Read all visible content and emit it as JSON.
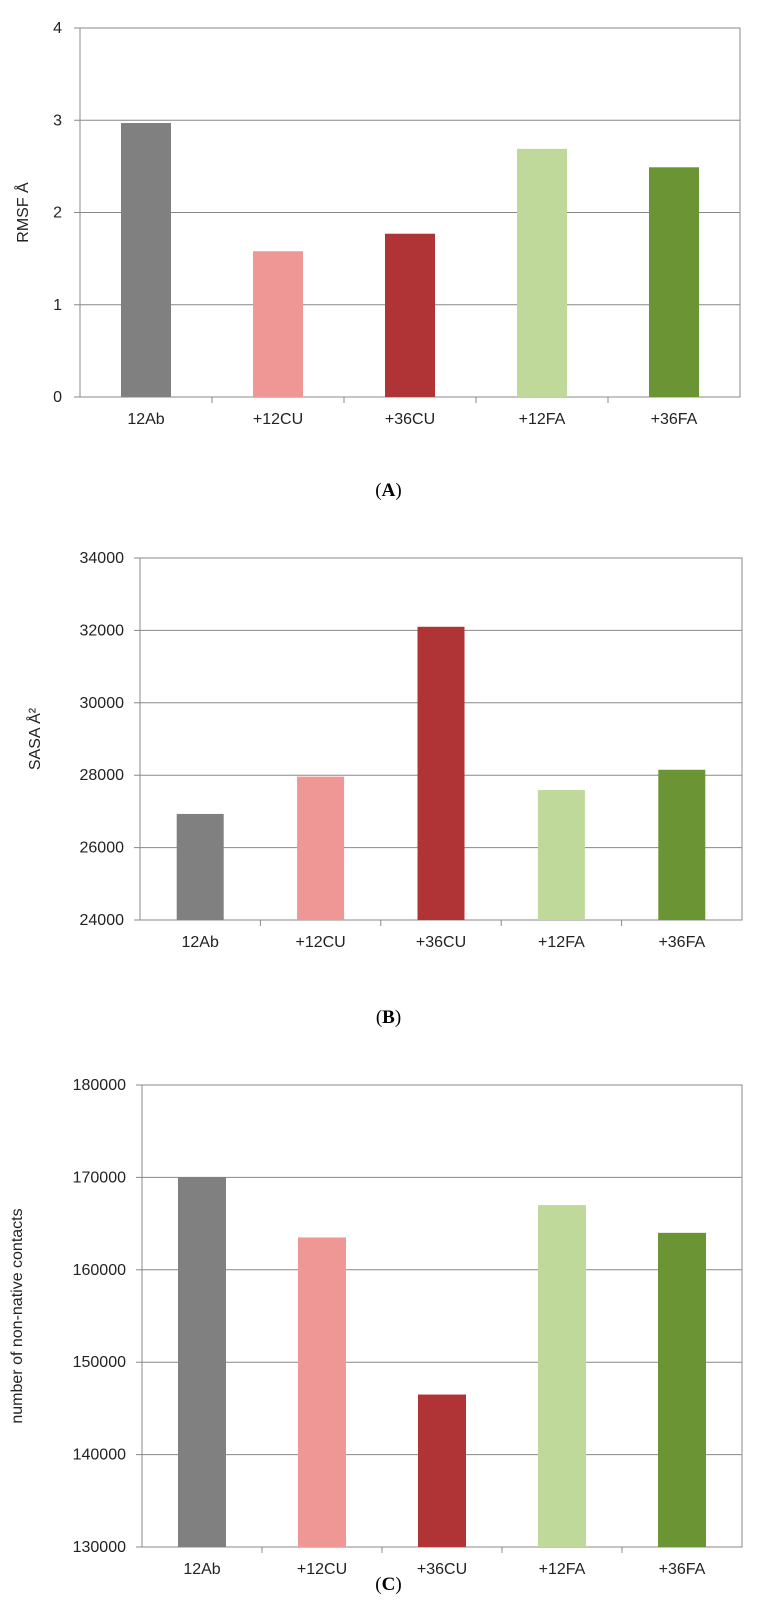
{
  "chart_data": [
    {
      "type": "bar",
      "panel_label": "A",
      "categories": [
        "12Ab",
        "+12CU",
        "+36CU",
        "+12FA",
        "+36FA"
      ],
      "values": [
        2.97,
        1.58,
        1.77,
        2.69,
        2.49
      ],
      "colors": [
        "#808080",
        "#ef9794",
        "#b03335",
        "#bfd99a",
        "#6b9534"
      ],
      "title": "",
      "xlabel": "",
      "ylabel": "RMSF Å",
      "ylim": [
        0,
        4
      ],
      "yticks": [
        0,
        1,
        2,
        3,
        4
      ],
      "ytick_labels": [
        "0",
        "1",
        "2",
        "3",
        "4"
      ],
      "grid": true,
      "legend": "none"
    },
    {
      "type": "bar",
      "panel_label": "B",
      "categories": [
        "12Ab",
        "+12CU",
        "+36CU",
        "+12FA",
        "+36FA"
      ],
      "values": [
        26930,
        27960,
        32100,
        27590,
        28150
      ],
      "colors": [
        "#808080",
        "#ef9794",
        "#b03335",
        "#bfd99a",
        "#6b9534"
      ],
      "title": "",
      "xlabel": "",
      "ylabel": "SASA Å²",
      "ylim": [
        24000,
        34000
      ],
      "yticks": [
        24000,
        26000,
        28000,
        30000,
        32000,
        34000
      ],
      "ytick_labels": [
        "24000",
        "26000",
        "28000",
        "30000",
        "32000",
        "34000"
      ],
      "grid": true,
      "legend": "none"
    },
    {
      "type": "bar",
      "panel_label": "C",
      "categories": [
        "12Ab",
        "+12CU",
        "+36CU",
        "+12FA",
        "+36FA"
      ],
      "values": [
        170000,
        163500,
        146500,
        167000,
        164000
      ],
      "colors": [
        "#808080",
        "#ef9794",
        "#b03335",
        "#bfd99a",
        "#6b9534"
      ],
      "title": "",
      "xlabel": "",
      "ylabel": "number of non-native contacts",
      "ylim": [
        130000,
        180000
      ],
      "yticks": [
        130000,
        140000,
        150000,
        160000,
        170000,
        180000
      ],
      "ytick_labels": [
        "130000",
        "140000",
        "150000",
        "160000",
        "170000",
        "180000"
      ],
      "grid": true,
      "legend": "none"
    }
  ],
  "captions": [
    {
      "open": "(",
      "label": "A",
      "close": ")"
    },
    {
      "open": "(",
      "label": "B",
      "close": ")"
    },
    {
      "open": "(",
      "label": "C",
      "close": ")"
    }
  ]
}
